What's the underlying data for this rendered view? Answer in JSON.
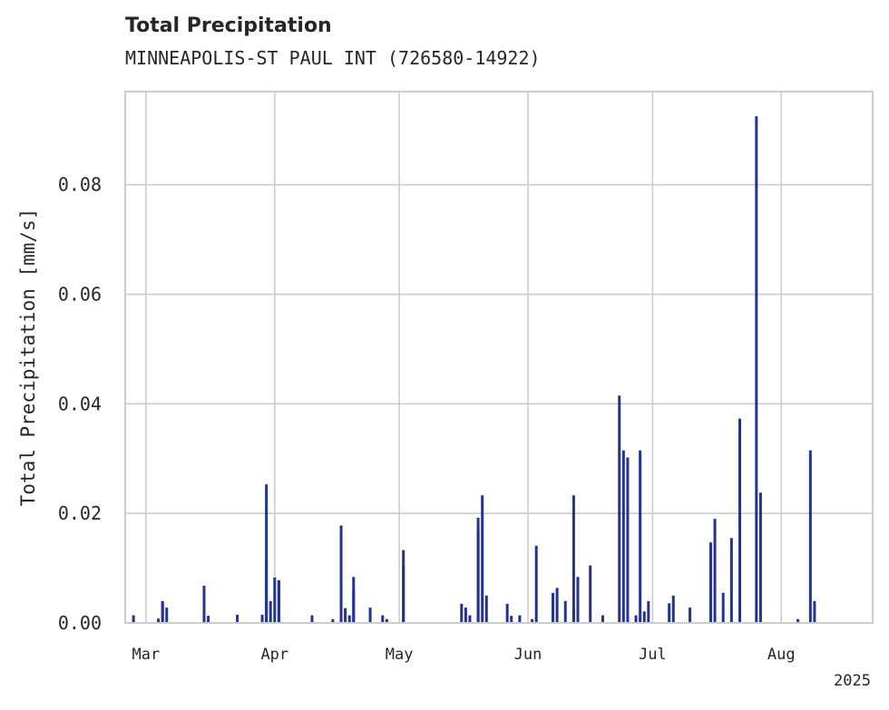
{
  "chart_data": {
    "type": "bar",
    "title": "Total Precipitation",
    "subtitle": "MINNEAPOLIS-ST PAUL INT (726580-14922)",
    "xlabel": "",
    "ylabel": "Total Precipitation [mm/s]",
    "ylim": [
      0,
      0.097
    ],
    "xlim": [
      "2025-02-24",
      "2025-08-23"
    ],
    "grid": true,
    "x_offset_label": "2025",
    "y_ticks": [
      {
        "value": 0.0,
        "label": "0.00"
      },
      {
        "value": 0.02,
        "label": "0.02"
      },
      {
        "value": 0.04,
        "label": "0.04"
      },
      {
        "value": 0.06,
        "label": "0.06"
      },
      {
        "value": 0.08,
        "label": "0.08"
      }
    ],
    "x_ticks": [
      {
        "date": "2025-03-01",
        "label": "Mar"
      },
      {
        "date": "2025-04-01",
        "label": "Apr"
      },
      {
        "date": "2025-05-01",
        "label": "May"
      },
      {
        "date": "2025-06-01",
        "label": "Jun"
      },
      {
        "date": "2025-07-01",
        "label": "Jul"
      },
      {
        "date": "2025-08-01",
        "label": "Aug"
      }
    ],
    "color": "#23338e",
    "series": [
      {
        "x": [
          "2025-02-26",
          "2025-03-04",
          "2025-03-05",
          "2025-03-05",
          "2025-03-06",
          "2025-03-15",
          "2025-03-16",
          "2025-03-23",
          "2025-03-29",
          "2025-03-30",
          "2025-03-30",
          "2025-03-31",
          "2025-04-01",
          "2025-04-02",
          "2025-04-02",
          "2025-04-10",
          "2025-04-15",
          "2025-04-17",
          "2025-04-18",
          "2025-04-19",
          "2025-04-20",
          "2025-04-20",
          "2025-04-24",
          "2025-04-27",
          "2025-04-28",
          "2025-05-02",
          "2025-05-02",
          "2025-05-16",
          "2025-05-17",
          "2025-05-18",
          "2025-05-20",
          "2025-05-20",
          "2025-05-21",
          "2025-05-22",
          "2025-05-27",
          "2025-05-28",
          "2025-05-30",
          "2025-06-02",
          "2025-06-03",
          "2025-06-07",
          "2025-06-08",
          "2025-06-10",
          "2025-06-12",
          "2025-06-12",
          "2025-06-13",
          "2025-06-16",
          "2025-06-19",
          "2025-06-23",
          "2025-06-24",
          "2025-06-25",
          "2025-06-27",
          "2025-06-28",
          "2025-06-29",
          "2025-06-30",
          "2025-07-05",
          "2025-07-06",
          "2025-07-10",
          "2025-07-15",
          "2025-07-16",
          "2025-07-18",
          "2025-07-20",
          "2025-07-22",
          "2025-07-26",
          "2025-07-27",
          "2025-08-05",
          "2025-08-08",
          "2025-08-09"
        ],
        "values": [
          0.0014,
          0.0008,
          0.004,
          0.0036,
          0.0028,
          0.0068,
          0.0013,
          0.0015,
          0.0015,
          0.0115,
          0.0253,
          0.004,
          0.0083,
          0.0078,
          0.0077,
          0.0014,
          0.0007,
          0.0178,
          0.0027,
          0.0014,
          0.006,
          0.0084,
          0.0028,
          0.0014,
          0.0007,
          0.0133,
          0.0105,
          0.0035,
          0.0028,
          0.0014,
          0.0168,
          0.0192,
          0.0233,
          0.005,
          0.0035,
          0.0013,
          0.0014,
          0.0007,
          0.0141,
          0.0055,
          0.0064,
          0.004,
          0.0023,
          0.0233,
          0.0084,
          0.0105,
          0.0014,
          0.0415,
          0.0315,
          0.0302,
          0.0014,
          0.0315,
          0.0021,
          0.004,
          0.0036,
          0.005,
          0.0028,
          0.0147,
          0.019,
          0.0055,
          0.0155,
          0.0373,
          0.0925,
          0.0238,
          0.0007,
          0.0315,
          0.004
        ]
      }
    ]
  }
}
